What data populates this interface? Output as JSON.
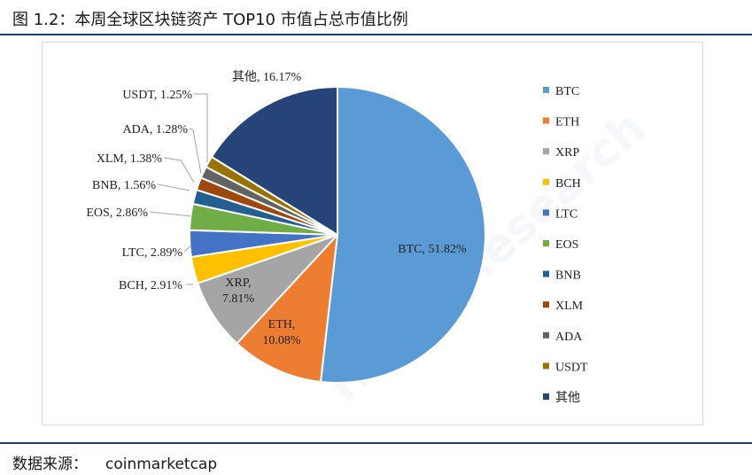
{
  "figure": {
    "title": "图 1.2：本周全球区块链资产 TOP10 市值占总市值比例",
    "source_label": "数据来源：",
    "source_value": "coinmarketcap"
  },
  "watermark_text": "Huobi Research",
  "chart_data": {
    "type": "pie",
    "categories": [
      "BTC",
      "ETH",
      "XRP",
      "BCH",
      "LTC",
      "EOS",
      "BNB",
      "XLM",
      "ADA",
      "USDT",
      "其他"
    ],
    "values": [
      51.82,
      10.08,
      7.81,
      2.91,
      2.89,
      2.86,
      1.56,
      1.38,
      1.28,
      1.25,
      16.17
    ],
    "labels": [
      "BTC, 51.82%",
      "ETH, 10.08%",
      "XRP, 7.81%",
      "BCH, 2.91%",
      "LTC, 2.89%",
      "EOS, 2.86%",
      "BNB, 1.56%",
      "XLM, 1.38%",
      "ADA, 1.28%",
      "USDT, 1.25%",
      "其他, 16.17%"
    ],
    "colors": [
      "#5b9bd5",
      "#ed7d31",
      "#a5a5a5",
      "#ffc000",
      "#4472c4",
      "#70ad47",
      "#255e91",
      "#9e480e",
      "#636363",
      "#997300",
      "#264478"
    ],
    "legend_position": "right",
    "start_angle_deg": 0,
    "direction": "clockwise"
  }
}
